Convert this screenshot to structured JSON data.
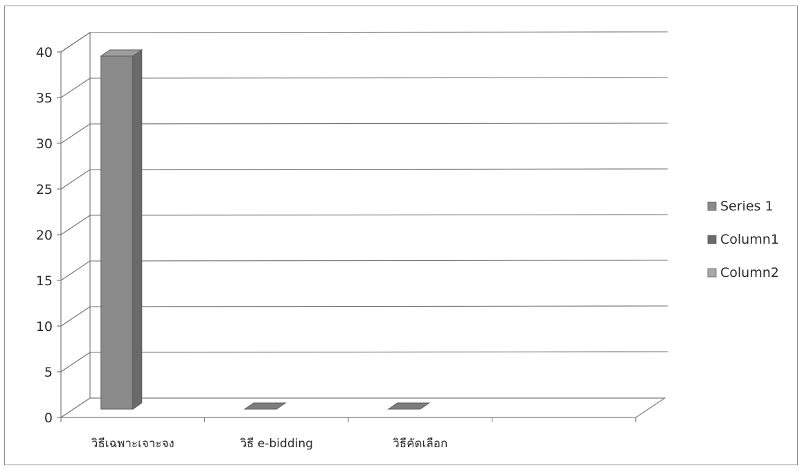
{
  "chart_data": {
    "type": "bar",
    "title": "",
    "xlabel": "",
    "ylabel": "",
    "categories": [
      "วิธีเฉพาะเจาะจง",
      "วิธี e-bidding",
      "วิธีคัดเลือก",
      ""
    ],
    "series": [
      {
        "name": "Series 1",
        "values": [
          40,
          0,
          0,
          0
        ],
        "color": "#8a8a8a"
      },
      {
        "name": "Column1",
        "values": [
          0,
          0,
          0,
          0
        ],
        "color": "#6b6b6b"
      },
      {
        "name": "Column2",
        "values": [
          0,
          0,
          0,
          0
        ],
        "color": "#a9a9a9"
      }
    ],
    "ylim": [
      0,
      40
    ],
    "yticks": [
      "0",
      "5",
      "10",
      "15",
      "20",
      "25",
      "30",
      "35",
      "40"
    ],
    "grid": true,
    "legend": "right",
    "style": "3d-column"
  }
}
